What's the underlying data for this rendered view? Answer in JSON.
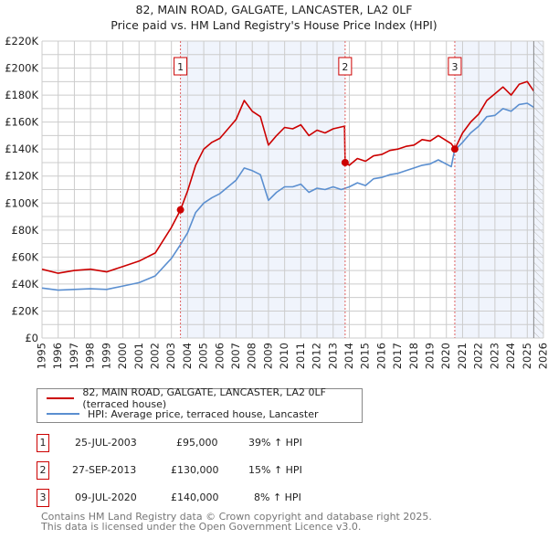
{
  "title": "82, MAIN ROAD, GALGATE, LANCASTER, LA2 0LF",
  "subtitle": "Price paid vs. HM Land Registry's House Price Index (HPI)",
  "legend": [
    {
      "label": "82, MAIN ROAD, GALGATE, LANCASTER, LA2 0LF (terraced house)",
      "color": "#cc0000"
    },
    {
      "label": "HPI: Average price, terraced house, Lancaster",
      "color": "#5b8fd0"
    }
  ],
  "sales": [
    {
      "num": "1",
      "date": "25-JUL-2003",
      "price": "£95,000",
      "hpi": "39% ↑ HPI",
      "x": 2003.56,
      "y": 95
    },
    {
      "num": "2",
      "date": "27-SEP-2013",
      "price": "£130,000",
      "hpi": "15% ↑ HPI",
      "x": 2013.74,
      "y": 130
    },
    {
      "num": "3",
      "date": "09-JUL-2020",
      "price": "£140,000",
      "hpi": "8% ↑ HPI",
      "x": 2020.52,
      "y": 140
    }
  ],
  "footer": [
    "Contains HM Land Registry data © Crown copyright and database right 2025.",
    "This data is licensed under the Open Government Licence v3.0."
  ],
  "chart_data": {
    "type": "line",
    "xlim": [
      1995,
      2026
    ],
    "ylim": [
      0,
      220000
    ],
    "yticks": [
      0,
      20,
      40,
      60,
      80,
      100,
      120,
      140,
      160,
      180,
      200,
      220
    ],
    "ytick_labels": [
      "£0",
      "£20K",
      "£40K",
      "£60K",
      "£80K",
      "£100K",
      "£120K",
      "£140K",
      "£160K",
      "£180K",
      "£200K",
      "£220K"
    ],
    "xticks": [
      "1995",
      "1996",
      "1997",
      "1998",
      "1999",
      "2000",
      "2001",
      "2002",
      "2003",
      "2004",
      "2005",
      "2006",
      "2007",
      "2008",
      "2009",
      "2010",
      "2011",
      "2012",
      "2013",
      "2014",
      "2015",
      "2016",
      "2017",
      "2018",
      "2019",
      "2020",
      "2021",
      "2022",
      "2023",
      "2024",
      "2025",
      "2026"
    ],
    "grid": true,
    "forecast_hatch_from": 2025.4,
    "series": [
      {
        "name": "82, MAIN ROAD, GALGATE, LANCASTER, LA2 0LF (terraced house)",
        "color": "#cc0000",
        "x": [
          1995,
          1996,
          1997,
          1998,
          1999,
          2000,
          2001,
          2002,
          2003,
          2003.56,
          2004,
          2004.5,
          2005,
          2005.5,
          2006,
          2006.5,
          2007,
          2007.5,
          2008,
          2008.5,
          2009,
          2009.5,
          2010,
          2010.5,
          2011,
          2011.5,
          2012,
          2012.5,
          2013,
          2013.7,
          2013.74,
          2014,
          2014.5,
          2015,
          2015.5,
          2016,
          2016.5,
          2017,
          2017.5,
          2018,
          2018.5,
          2019,
          2019.5,
          2020.3,
          2020.52,
          2021,
          2021.5,
          2022,
          2022.5,
          2023,
          2023.5,
          2024,
          2024.5,
          2025,
          2025.4
        ],
        "y": [
          51,
          48,
          50,
          51,
          49,
          53,
          57,
          63,
          82,
          95,
          109,
          128,
          140,
          145,
          148,
          155,
          162,
          176,
          168,
          164,
          143,
          150,
          156,
          155,
          158,
          150,
          154,
          152,
          155,
          157,
          130,
          128,
          133,
          131,
          135,
          136,
          139,
          140,
          142,
          143,
          147,
          146,
          150,
          144,
          140,
          152,
          160,
          166,
          176,
          181,
          186,
          180,
          188,
          190,
          183
        ]
      },
      {
        "name": "HPI: Average price, terraced house, Lancaster",
        "color": "#5b8fd0",
        "x": [
          1995,
          1996,
          1997,
          1998,
          1999,
          2000,
          2001,
          2002,
          2003,
          2003.5,
          2004,
          2004.5,
          2005,
          2005.5,
          2006,
          2006.5,
          2007,
          2007.5,
          2008,
          2008.5,
          2009,
          2009.5,
          2010,
          2010.5,
          2011,
          2011.5,
          2012,
          2012.5,
          2013,
          2013.5,
          2014,
          2014.5,
          2015,
          2015.5,
          2016,
          2016.5,
          2017,
          2017.5,
          2018,
          2018.5,
          2019,
          2019.5,
          2020.3,
          2020.5,
          2021,
          2021.5,
          2022,
          2022.5,
          2023,
          2023.5,
          2024,
          2024.5,
          2025,
          2025.4
        ],
        "y": [
          37,
          35.5,
          36,
          36.5,
          36,
          38.5,
          41,
          46,
          59,
          68,
          78,
          93,
          100,
          104,
          107,
          112,
          117,
          126,
          124,
          121,
          102,
          108,
          112,
          112,
          114,
          108,
          111,
          110,
          112,
          110,
          112,
          115,
          113,
          118,
          119,
          121,
          122,
          124,
          126,
          128,
          129,
          132,
          127,
          139,
          145,
          152,
          157,
          164,
          165,
          170,
          168,
          173,
          174,
          171
        ]
      }
    ]
  }
}
